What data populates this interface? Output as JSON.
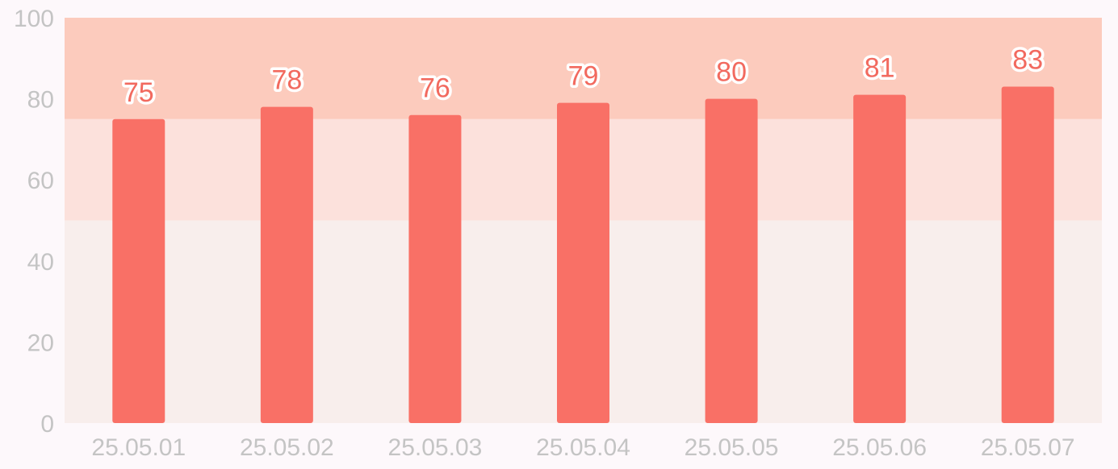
{
  "chart_data": {
    "type": "bar",
    "categories": [
      "25.05.01",
      "25.05.02",
      "25.05.03",
      "25.05.04",
      "25.05.05",
      "25.05.06",
      "25.05.07"
    ],
    "values": [
      75,
      78,
      76,
      79,
      80,
      81,
      83
    ],
    "title": "",
    "xlabel": "",
    "ylabel": "",
    "ylim": [
      0,
      100
    ],
    "yticks": [
      0,
      20,
      40,
      60,
      80,
      100
    ],
    "grid": false,
    "show_data_labels": true,
    "background_bands": [
      {
        "from": 0,
        "to": 50,
        "color": "#f8eeec"
      },
      {
        "from": 50,
        "to": 75,
        "color": "#fce1dc"
      },
      {
        "from": 75,
        "to": 100,
        "color": "#fccbbd"
      }
    ],
    "colors": {
      "bar": "#f97066",
      "data_label": "#f26a5f",
      "tick_label": "#c4c4c4",
      "page_background": "#fdf8fb"
    }
  }
}
